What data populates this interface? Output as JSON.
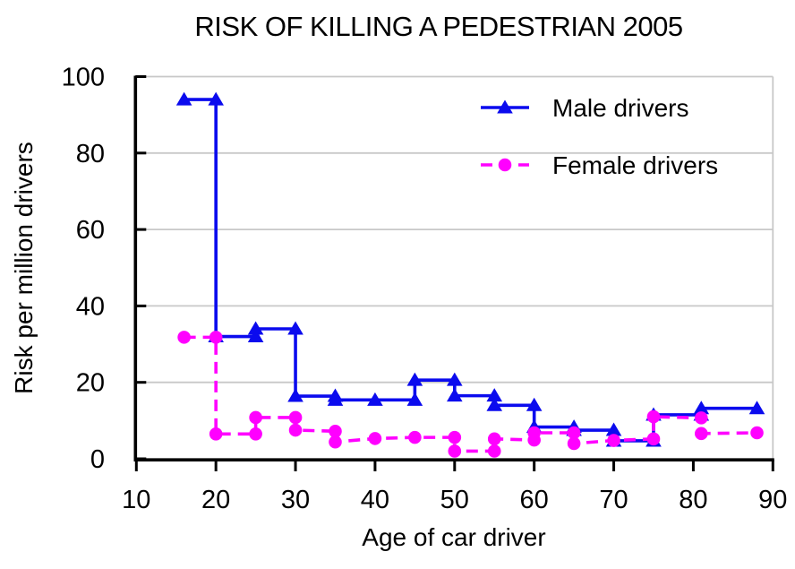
{
  "title": "RISK OF KILLING A PEDESTRIAN 2005",
  "colors": {
    "background": "#ffffff",
    "axis": "#000000",
    "grid": "#c8c8c8",
    "male": "#0b0bee",
    "female": "#ff00ff"
  },
  "chart_data": {
    "type": "line",
    "subtype": "stepped-risk-curves",
    "title": "RISK OF KILLING A PEDESTRIAN 2005",
    "xlabel": "Age of car driver",
    "ylabel": "Risk per million drivers",
    "x_axis": {
      "min": 10,
      "max": 90,
      "ticks": [
        10,
        20,
        30,
        40,
        50,
        60,
        70,
        80,
        90
      ]
    },
    "y_axis": {
      "min": 0,
      "max": 100,
      "ticks": [
        0,
        20,
        40,
        60,
        80,
        100
      ]
    },
    "grid": "horizontal-only",
    "legend_position": "inside-top-right",
    "series": [
      {
        "name": "Male drivers",
        "color": "#0b0bee",
        "line_style": "solid",
        "marker": "triangle",
        "points": [
          [
            16,
            94
          ],
          [
            20,
            94
          ],
          [
            20,
            32
          ],
          [
            25,
            32
          ],
          [
            25,
            34
          ],
          [
            30,
            34
          ],
          [
            30,
            16.4
          ],
          [
            35,
            16.4
          ],
          [
            35,
            15.4
          ],
          [
            40,
            15.4
          ],
          [
            45,
            15.4
          ],
          [
            45,
            20.6
          ],
          [
            50,
            20.6
          ],
          [
            50,
            16.5
          ],
          [
            55,
            16.5
          ],
          [
            55,
            14
          ],
          [
            60,
            14
          ],
          [
            60,
            8.3
          ],
          [
            65,
            8.3
          ],
          [
            65,
            7.5
          ],
          [
            70,
            7.5
          ],
          [
            70,
            4.7
          ],
          [
            75,
            4.7
          ],
          [
            75,
            11.5
          ],
          [
            81,
            11.5
          ],
          [
            81,
            13.2
          ],
          [
            88,
            13.2
          ]
        ]
      },
      {
        "name": "Female drivers",
        "color": "#ff00ff",
        "line_style": "dashed",
        "marker": "circle",
        "points": [
          [
            16,
            31.8
          ],
          [
            20,
            31.8
          ],
          [
            20,
            6.5
          ],
          [
            25,
            6.5
          ],
          [
            25,
            10.8
          ],
          [
            30,
            10.8
          ],
          [
            30,
            7.5
          ],
          [
            35,
            7.2
          ],
          [
            35,
            4.4
          ],
          [
            40,
            5.3
          ],
          [
            45,
            5.6
          ],
          [
            50,
            5.6
          ],
          [
            50,
            2
          ],
          [
            55,
            2
          ],
          [
            55,
            5.2
          ],
          [
            60,
            4.9
          ],
          [
            60,
            6.8
          ],
          [
            65,
            6.8
          ],
          [
            65,
            4
          ],
          [
            70,
            4.8
          ],
          [
            75,
            5.2
          ],
          [
            75,
            11
          ],
          [
            81,
            10.7
          ],
          [
            81,
            6.6
          ],
          [
            88,
            6.8
          ]
        ]
      }
    ]
  }
}
